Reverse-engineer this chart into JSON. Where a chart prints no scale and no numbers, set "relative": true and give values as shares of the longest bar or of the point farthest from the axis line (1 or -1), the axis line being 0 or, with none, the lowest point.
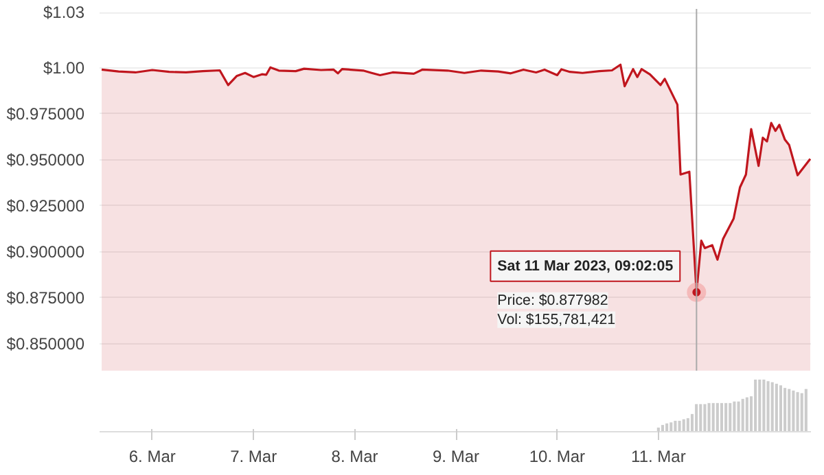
{
  "chart_data": [
    {
      "type": "area",
      "x": [
        "2023-03-05T12:00",
        "2023-03-05T16:00",
        "2023-03-05T20:00",
        "2023-03-06T00:00",
        "2023-03-06T04:00",
        "2023-03-06T08:00",
        "2023-03-06T12:00",
        "2023-03-06T16:00",
        "2023-03-06T18:00",
        "2023-03-06T20:00",
        "2023-03-06T22:00",
        "2023-03-07T00:00",
        "2023-03-07T02:00",
        "2023-03-07T03:00",
        "2023-03-07T04:00",
        "2023-03-07T06:00",
        "2023-03-07T10:00",
        "2023-03-07T12:00",
        "2023-03-07T16:00",
        "2023-03-07T19:00",
        "2023-03-07T20:00",
        "2023-03-07T21:00",
        "2023-03-08T02:00",
        "2023-03-08T04:00",
        "2023-03-08T06:00",
        "2023-03-08T09:00",
        "2023-03-08T14:00",
        "2023-03-08T16:00",
        "2023-03-08T22:00",
        "2023-03-09T02:00",
        "2023-03-09T06:00",
        "2023-03-09T10:00",
        "2023-03-09T13:00",
        "2023-03-09T16:00",
        "2023-03-09T19:00",
        "2023-03-09T21:00",
        "2023-03-10T00:00",
        "2023-03-10T01:00",
        "2023-03-10T03:00",
        "2023-03-10T06:00",
        "2023-03-10T10:00",
        "2023-03-10T13:00",
        "2023-03-10T15:00",
        "2023-03-10T16:00",
        "2023-03-10T18:00",
        "2023-03-10T19:00",
        "2023-03-10T20:00",
        "2023-03-10T22:00",
        "2023-03-11T00:30",
        "2023-03-11T01:30",
        "2023-03-11T04:30",
        "2023-03-11T05:15",
        "2023-03-11T07:20",
        "2023-03-11T09:02:05",
        "2023-03-11T10:10",
        "2023-03-11T11:00",
        "2023-03-11T12:45",
        "2023-03-11T14:00",
        "2023-03-11T15:20",
        "2023-03-11T17:50",
        "2023-03-11T19:20",
        "2023-03-11T20:45",
        "2023-03-11T22:00",
        "2023-03-11T23:45",
        "2023-03-12T00:45",
        "2023-03-12T01:45",
        "2023-03-12T02:45",
        "2023-03-12T03:45",
        "2023-03-12T04:40",
        "2023-03-12T06:00",
        "2023-03-12T07:00",
        "2023-03-12T09:00",
        "2023-03-12T12:00"
      ],
      "series": [
        {
          "color": "#c0161e",
          "values": [
            0.999,
            0.998,
            0.9975,
            0.9988,
            0.9978,
            0.9975,
            0.9982,
            0.9986,
            0.9906,
            0.9955,
            0.9972,
            0.995,
            0.9965,
            0.9962,
            1.0002,
            0.9985,
            0.9982,
            0.9995,
            0.9988,
            0.999,
            0.997,
            0.9993,
            0.9985,
            0.9972,
            0.996,
            0.9975,
            0.9968,
            0.999,
            0.9985,
            0.9972,
            0.9985,
            0.998,
            0.997,
            0.999,
            0.9975,
            0.999,
            0.996,
            0.9992,
            0.9978,
            0.9972,
            0.9982,
            0.9986,
            1.0017,
            0.99,
            0.9993,
            0.995,
            0.9993,
            0.9964,
            0.9906,
            0.994,
            0.98,
            0.942,
            0.9435,
            0.877982,
            0.906,
            0.902,
            0.9036,
            0.8957,
            0.907,
            0.918,
            0.935,
            0.942,
            0.9667,
            0.9467,
            0.962,
            0.96,
            0.97,
            0.9657,
            0.969,
            0.9609,
            0.958,
            0.9416,
            0.9505
          ]
        }
      ],
      "xlim": [
        "2023-03-05T11:30",
        "2023-03-12T12:10"
      ],
      "ylim": [
        0.835,
        1.032
      ],
      "yticks": [
        {
          "value": 0.85,
          "label": "$0.850000"
        },
        {
          "value": 0.875,
          "label": "$0.875000"
        },
        {
          "value": 0.9,
          "label": "$0.900000"
        },
        {
          "value": 0.925,
          "label": "$0.925000"
        },
        {
          "value": 0.95,
          "label": "$0.950000"
        },
        {
          "value": 0.975,
          "label": "$0.975000"
        },
        {
          "value": 1.0,
          "label": "$1.00"
        },
        {
          "value": 1.03,
          "label": "$1.03"
        }
      ],
      "tick_labels": "y",
      "grid": "y",
      "ref_lines": [
        {
          "axis": "x",
          "value": "2023-03-11T09:02:05",
          "color": "#aaaaaa"
        }
      ],
      "annotations": [
        {
          "text": "Sat 11 Mar 2023, 09:02:05",
          "x": "2023-03-11T09:02:05",
          "y": 0.877982
        },
        "Price: $0.877982",
        "Vol: $155,781,421"
      ]
    },
    {
      "type": "bar",
      "relative": true,
      "color": "#cccccc",
      "x": [
        "2023-03-11T00:00",
        "2023-03-11T01:00",
        "2023-03-11T02:00",
        "2023-03-11T03:00",
        "2023-03-11T04:00",
        "2023-03-11T05:00",
        "2023-03-11T06:00",
        "2023-03-11T07:00",
        "2023-03-11T08:00",
        "2023-03-11T09:00",
        "2023-03-11T10:00",
        "2023-03-11T11:00",
        "2023-03-11T12:00",
        "2023-03-11T13:00",
        "2023-03-11T14:00",
        "2023-03-11T15:00",
        "2023-03-11T16:00",
        "2023-03-11T17:00",
        "2023-03-11T18:00",
        "2023-03-11T19:00",
        "2023-03-11T20:00",
        "2023-03-11T21:00",
        "2023-03-11T22:00",
        "2023-03-11T23:00",
        "2023-03-12T00:00",
        "2023-03-12T01:00",
        "2023-03-12T02:00",
        "2023-03-12T03:00",
        "2023-03-12T04:00",
        "2023-03-12T05:00",
        "2023-03-12T06:00",
        "2023-03-12T07:00",
        "2023-03-12T08:00",
        "2023-03-12T09:00",
        "2023-03-12T10:00",
        "2023-03-12T11:00"
      ],
      "values": [
        0.08,
        0.13,
        0.16,
        0.18,
        0.21,
        0.21,
        0.24,
        0.26,
        0.34,
        0.53,
        0.53,
        0.53,
        0.55,
        0.55,
        0.55,
        0.55,
        0.55,
        0.55,
        0.58,
        0.58,
        0.63,
        0.66,
        0.68,
        1,
        1,
        1,
        0.97,
        0.95,
        0.92,
        0.89,
        0.84,
        0.82,
        0.79,
        0.76,
        0.74,
        0.82
      ],
      "xlim": [
        "2023-03-05T11:30",
        "2023-03-12T12:10"
      ],
      "xticks": [
        {
          "value": "2023-03-06",
          "label": "6. Mar"
        },
        {
          "value": "2023-03-07",
          "label": "7. Mar"
        },
        {
          "value": "2023-03-08",
          "label": "8. Mar"
        },
        {
          "value": "2023-03-09",
          "label": "9. Mar"
        },
        {
          "value": "2023-03-10",
          "label": "10. Mar"
        },
        {
          "value": "2023-03-11",
          "label": "11. Mar"
        }
      ]
    }
  ]
}
